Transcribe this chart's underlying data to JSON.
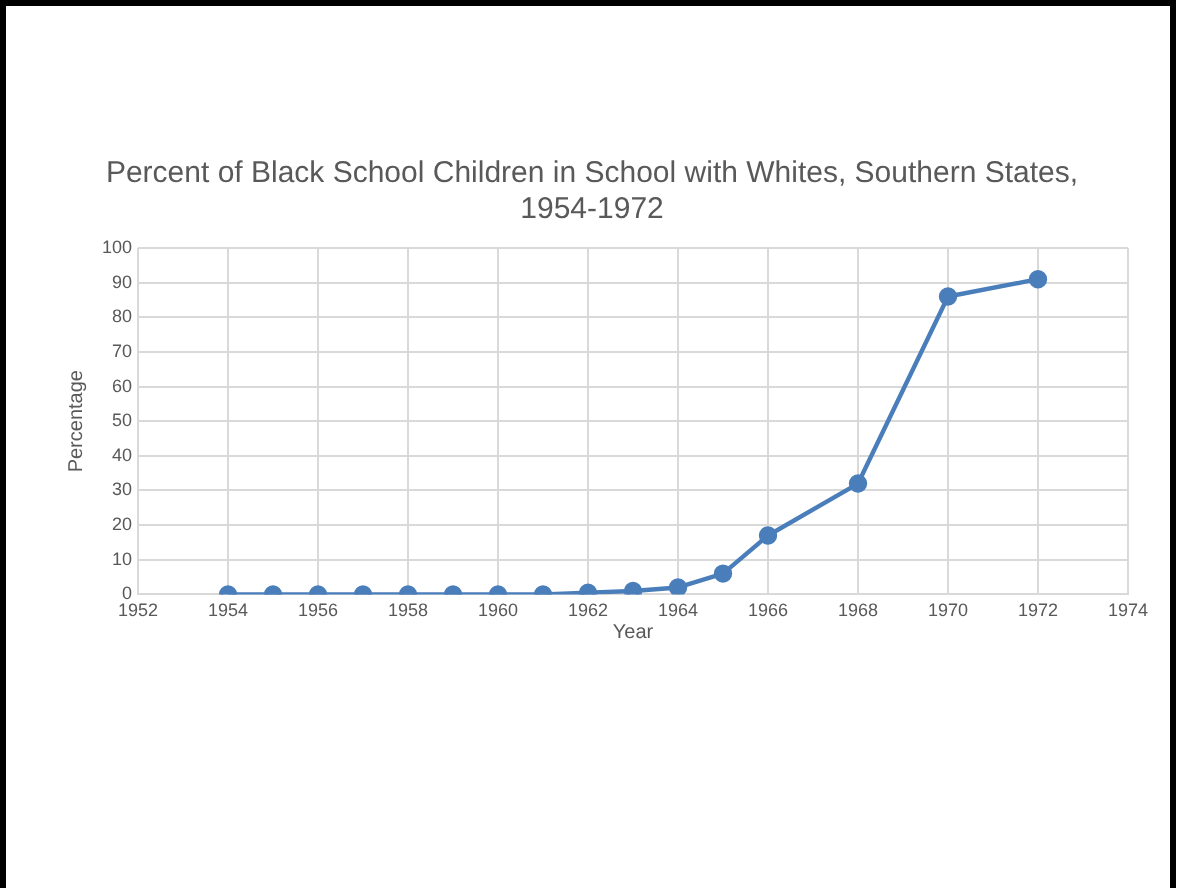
{
  "chart_data": {
    "type": "line",
    "title": "Percent of Black School Children in School with Whites, Southern States,\n1954-1972",
    "xlabel": "Year",
    "ylabel": "Percentage",
    "x": [
      1954,
      1955,
      1956,
      1957,
      1958,
      1959,
      1960,
      1961,
      1962,
      1963,
      1964,
      1965,
      1966,
      1968,
      1970,
      1972
    ],
    "series": [
      {
        "color": "#4a7ebb",
        "values": [
          0,
          0,
          0,
          0,
          0,
          0,
          0,
          0,
          0.5,
          1,
          2,
          6,
          17,
          32,
          86,
          91
        ]
      }
    ],
    "xlim": [
      1952,
      1974
    ],
    "xticks": [
      1952,
      1954,
      1956,
      1958,
      1960,
      1962,
      1964,
      1966,
      1968,
      1970,
      1972,
      1974
    ],
    "ylim": [
      0,
      100
    ],
    "yticks": [
      0,
      10,
      20,
      30,
      40,
      50,
      60,
      70,
      80,
      90,
      100
    ],
    "grid": true,
    "legend": false,
    "marker": "circle",
    "line_style": "solid"
  }
}
